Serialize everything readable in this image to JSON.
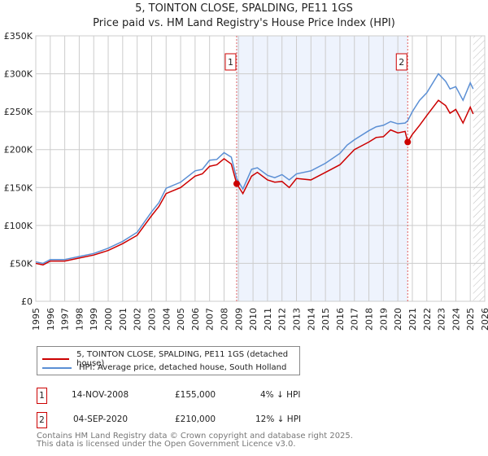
{
  "title": "5, TOINTON CLOSE, SPALDING, PE11 1GS",
  "subtitle": "Price paid vs. HM Land Registry's House Price Index (HPI)",
  "chart_data": {
    "type": "line",
    "title": "5, TOINTON CLOSE, SPALDING, PE11 1GS",
    "subtitle": "Price paid vs. HM Land Registry's House Price Index (HPI)",
    "xlim": [
      1995,
      2026
    ],
    "ylim": [
      0,
      350000
    ],
    "x_ticks": [
      "1995",
      "1996",
      "1997",
      "1998",
      "1999",
      "2000",
      "2001",
      "2002",
      "2003",
      "2004",
      "2005",
      "2006",
      "2007",
      "2008",
      "2009",
      "2010",
      "2011",
      "2012",
      "2013",
      "2014",
      "2015",
      "2016",
      "2017",
      "2018",
      "2019",
      "2020",
      "2021",
      "2022",
      "2023",
      "2024",
      "2025",
      "2026"
    ],
    "y_ticks": [
      {
        "v": 0,
        "label": "£0"
      },
      {
        "v": 50000,
        "label": "£50K"
      },
      {
        "v": 100000,
        "label": "£100K"
      },
      {
        "v": 150000,
        "label": "£150K"
      },
      {
        "v": 200000,
        "label": "£200K"
      },
      {
        "v": 250000,
        "label": "£250K"
      },
      {
        "v": 300000,
        "label": "£300K"
      },
      {
        "v": 350000,
        "label": "£350K"
      }
    ],
    "grid": true,
    "shaded_period": [
      2008.87,
      2020.68
    ],
    "forecast_hatch_from": 2025.2,
    "series": [
      {
        "name": "5, TOINTON CLOSE, SPALDING, PE11 1GS (detached house)",
        "color": "#cc0000",
        "x": [
          1995,
          1995.5,
          1996,
          1997,
          1998,
          1999,
          2000,
          2001,
          2002,
          2003,
          2003.5,
          2004,
          2005,
          2006,
          2006.5,
          2007,
          2007.5,
          2008,
          2008.5,
          2008.87,
          2009.3,
          2009.9,
          2010.3,
          2011,
          2011.5,
          2012,
          2012.5,
          2013,
          2014,
          2015,
          2016,
          2016.5,
          2017,
          2018,
          2018.5,
          2019,
          2019.5,
          2020,
          2020.5,
          2020.68,
          2021,
          2021.5,
          2022,
          2022.8,
          2023.3,
          2023.6,
          2024,
          2024.5,
          2025,
          2025.2
        ],
        "y": [
          50000,
          48000,
          53000,
          53000,
          57000,
          61000,
          67000,
          76000,
          87000,
          113000,
          125000,
          142000,
          150000,
          165000,
          168000,
          178000,
          180000,
          188000,
          181000,
          155000,
          142000,
          165000,
          170000,
          160000,
          157000,
          158000,
          150000,
          162000,
          160000,
          170000,
          180000,
          190000,
          200000,
          210000,
          216000,
          217000,
          226000,
          222000,
          224000,
          210000,
          220000,
          232000,
          245000,
          265000,
          258000,
          248000,
          253000,
          235000,
          256000,
          247000
        ]
      },
      {
        "name": "HPI: Average price, detached house, South Holland",
        "color": "#5b8fd4",
        "x": [
          1995,
          1995.5,
          1996,
          1997,
          1998,
          1999,
          2000,
          2001,
          2002,
          2003,
          2003.5,
          2004,
          2005,
          2006,
          2006.5,
          2007,
          2007.5,
          2008,
          2008.5,
          2008.87,
          2009.3,
          2009.9,
          2010.3,
          2011,
          2011.5,
          2012,
          2012.5,
          2013,
          2014,
          2015,
          2016,
          2016.5,
          2017,
          2018,
          2018.5,
          2019,
          2019.5,
          2020,
          2020.5,
          2020.68,
          2021,
          2021.5,
          2022,
          2022.8,
          2023.3,
          2023.6,
          2024,
          2024.5,
          2025,
          2025.2
        ],
        "y": [
          52000,
          50000,
          55000,
          55000,
          59000,
          63000,
          70000,
          79000,
          91000,
          118000,
          130000,
          149000,
          157000,
          172000,
          174000,
          186000,
          187000,
          196000,
          190000,
          162000,
          148000,
          174000,
          176000,
          166000,
          163000,
          167000,
          160000,
          168000,
          172000,
          182000,
          195000,
          206000,
          213000,
          225000,
          230000,
          232000,
          237000,
          234000,
          235000,
          238000,
          250000,
          265000,
          275000,
          300000,
          290000,
          280000,
          283000,
          265000,
          288000,
          280000
        ]
      }
    ],
    "sales": [
      {
        "label": "1",
        "x": 2008.87,
        "y": 155000
      },
      {
        "label": "2",
        "x": 2020.68,
        "y": 210000
      }
    ]
  },
  "legend": {
    "items": [
      {
        "label": "5, TOINTON CLOSE, SPALDING, PE11 1GS (detached house)",
        "color": "#cc0000"
      },
      {
        "label": "HPI: Average price, detached house, South Holland",
        "color": "#5b8fd4"
      }
    ]
  },
  "transactions": [
    {
      "num": "1",
      "date": "14-NOV-2008",
      "price": "£155,000",
      "hpi": "4% ↓ HPI"
    },
    {
      "num": "2",
      "date": "04-SEP-2020",
      "price": "£210,000",
      "hpi": "12% ↓ HPI"
    }
  ],
  "footer": {
    "line1": "Contains HM Land Registry data © Crown copyright and database right 2025.",
    "line2": "This data is licensed under the Open Government Licence v3.0."
  }
}
